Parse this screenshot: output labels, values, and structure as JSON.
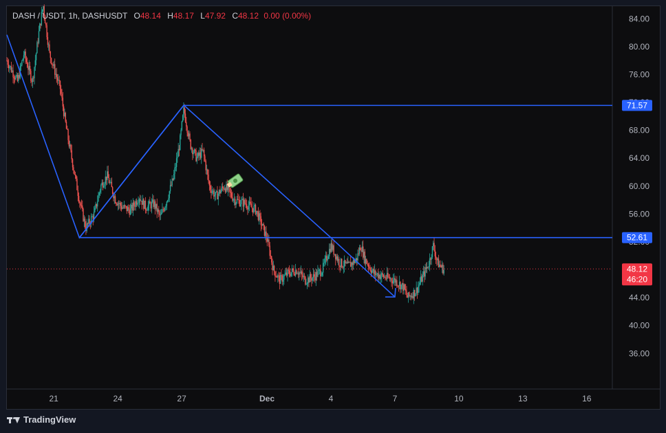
{
  "legend": {
    "symbol": "DASH / USDT, 1h, DASHUSDT",
    "o_label": "O",
    "o_value": "48.14",
    "h_label": "H",
    "h_value": "48.17",
    "l_label": "L",
    "l_value": "47.92",
    "c_label": "C",
    "c_value": "48.12",
    "change": "0.00 (0.00%)"
  },
  "footer": {
    "brand": "TradingView",
    "logo_icon": "tradingview-logo-icon"
  },
  "colors": {
    "up": "#26a69a",
    "down": "#ef5350",
    "drawing": "#2962ff",
    "price_tag": "#f23645",
    "text": "#b2b5be",
    "background": "#0d0d0f"
  },
  "chart_data": {
    "type": "candlestick",
    "y_ticks": [
      "84.00",
      "80.00",
      "76.00",
      "72.00",
      "68.00",
      "64.00",
      "60.00",
      "56.00",
      "52.00",
      "48.00",
      "44.00",
      "40.00",
      "36.00"
    ],
    "y_tick_values": [
      84,
      80,
      76,
      72,
      68,
      64,
      60,
      56,
      52,
      48,
      44,
      40,
      36
    ],
    "x_ticks": [
      "21",
      "24",
      "27",
      "Dec",
      "4",
      "7",
      "10",
      "13",
      "16"
    ],
    "x_tick_days": [
      21,
      24,
      27,
      31,
      34,
      37,
      40,
      43,
      46
    ],
    "price_range": [
      30.9,
      85.8
    ],
    "day_range": [
      18.8,
      47.2
    ],
    "horizontal_levels": [
      {
        "label": "71.57",
        "value": 71.57
      },
      {
        "label": "52.61",
        "value": 52.61
      }
    ],
    "current_price": {
      "label": "48.12",
      "value": 48.12,
      "countdown": "46:20"
    },
    "drawing": {
      "diamond": [
        [
          18.8,
          81.7
        ],
        [
          22.2,
          52.6
        ],
        [
          27.1,
          71.6
        ],
        [
          34.0,
          52.6
        ]
      ],
      "arrow": [
        [
          34.0,
          52.6
        ],
        [
          37.0,
          44.1
        ]
      ]
    },
    "price_path": [
      [
        18.8,
        78.0
      ],
      [
        19.3,
        75.0
      ],
      [
        19.6,
        79.0
      ],
      [
        20.0,
        75.0
      ],
      [
        20.3,
        82.0
      ],
      [
        20.5,
        86.0
      ],
      [
        20.8,
        79.0
      ],
      [
        21.0,
        77.0
      ],
      [
        21.3,
        74.0
      ],
      [
        21.6,
        68.0
      ],
      [
        21.9,
        63.0
      ],
      [
        22.2,
        58.0
      ],
      [
        22.5,
        54.0
      ],
      [
        22.9,
        56.0
      ],
      [
        23.2,
        60.0
      ],
      [
        23.5,
        61.5
      ],
      [
        23.9,
        58.0
      ],
      [
        24.2,
        57.0
      ],
      [
        24.6,
        56.5
      ],
      [
        25.0,
        58.5
      ],
      [
        25.3,
        57.0
      ],
      [
        25.7,
        57.5
      ],
      [
        26.0,
        55.5
      ],
      [
        26.3,
        58.0
      ],
      [
        26.6,
        61.0
      ],
      [
        26.9,
        66.0
      ],
      [
        27.1,
        71.0
      ],
      [
        27.4,
        66.0
      ],
      [
        27.7,
        64.0
      ],
      [
        28.0,
        65.0
      ],
      [
        28.3,
        60.0
      ],
      [
        28.6,
        58.5
      ],
      [
        29.0,
        60.0
      ],
      [
        29.5,
        58.0
      ],
      [
        30.0,
        57.5
      ],
      [
        30.5,
        56.5
      ],
      [
        31.0,
        52.5
      ],
      [
        31.3,
        48.0
      ],
      [
        31.6,
        46.5
      ],
      [
        32.0,
        47.5
      ],
      [
        32.4,
        48.0
      ],
      [
        32.8,
        46.5
      ],
      [
        33.2,
        47.0
      ],
      [
        33.6,
        48.0
      ],
      [
        34.0,
        51.5
      ],
      [
        34.4,
        49.0
      ],
      [
        34.8,
        48.5
      ],
      [
        35.2,
        49.5
      ],
      [
        35.4,
        51.5
      ],
      [
        35.6,
        49.5
      ],
      [
        36.0,
        47.5
      ],
      [
        36.5,
        47.0
      ],
      [
        37.0,
        46.5
      ],
      [
        37.4,
        45.5
      ],
      [
        37.6,
        44.0
      ],
      [
        38.0,
        45.0
      ],
      [
        38.3,
        47.0
      ],
      [
        38.6,
        49.0
      ],
      [
        38.8,
        51.5
      ],
      [
        39.0,
        49.0
      ],
      [
        39.3,
        48.0
      ]
    ]
  }
}
